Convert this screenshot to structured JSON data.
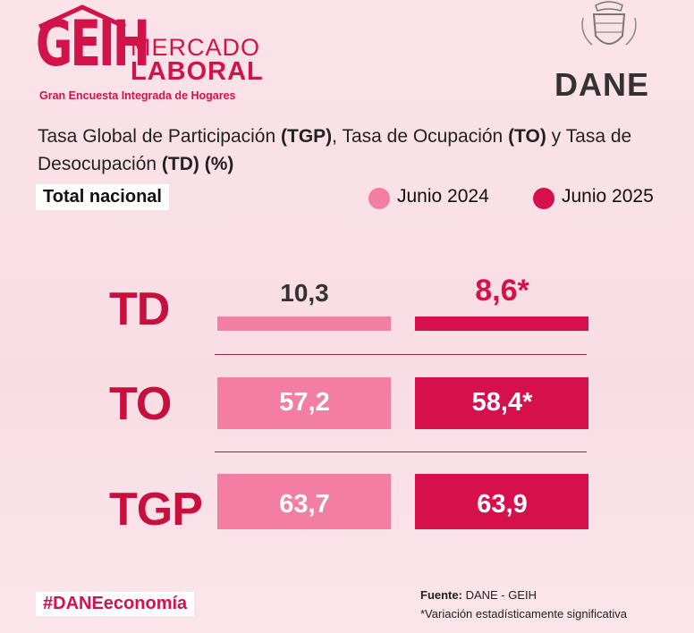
{
  "brand": {
    "logo": "GEIH",
    "name_line1": "MERCADO",
    "name_line2": "LABORAL",
    "subtitle": "Gran Encuesta Integrada de Hogares",
    "org": "DANE"
  },
  "chart_data": {
    "type": "bar",
    "title_parts": [
      {
        "text": "Tasa Global de Participación ",
        "bold": false
      },
      {
        "text": "(TGP)",
        "bold": true
      },
      {
        "text": ", Tasa de Ocupación ",
        "bold": false
      },
      {
        "text": "(TO)",
        "bold": true
      },
      {
        "text": " y Tasa de Desocupación ",
        "bold": false
      },
      {
        "text": "(TD)",
        "bold": true
      },
      {
        "text": " ",
        "bold": false
      },
      {
        "text": "(%)",
        "bold": true
      }
    ],
    "scope": "Total nacional",
    "categories": [
      "TD",
      "TO",
      "TGP"
    ],
    "series": [
      {
        "name": "Junio 2024",
        "values": [
          10.3,
          57.2,
          63.7
        ],
        "labels": [
          "10,3",
          "57,2",
          "63,7"
        ],
        "color": "#f47ea3"
      },
      {
        "name": "Junio 2025",
        "values": [
          8.6,
          58.4,
          63.9
        ],
        "labels": [
          "8,6*",
          "58,4*",
          "63,9"
        ],
        "color": "#d6104c"
      }
    ]
  },
  "footer": {
    "hashtag": "#DANEeconomía",
    "source_label": "Fuente:",
    "source_value": " DANE - GEIH",
    "note": "*Variación estadísticamente significativa"
  }
}
